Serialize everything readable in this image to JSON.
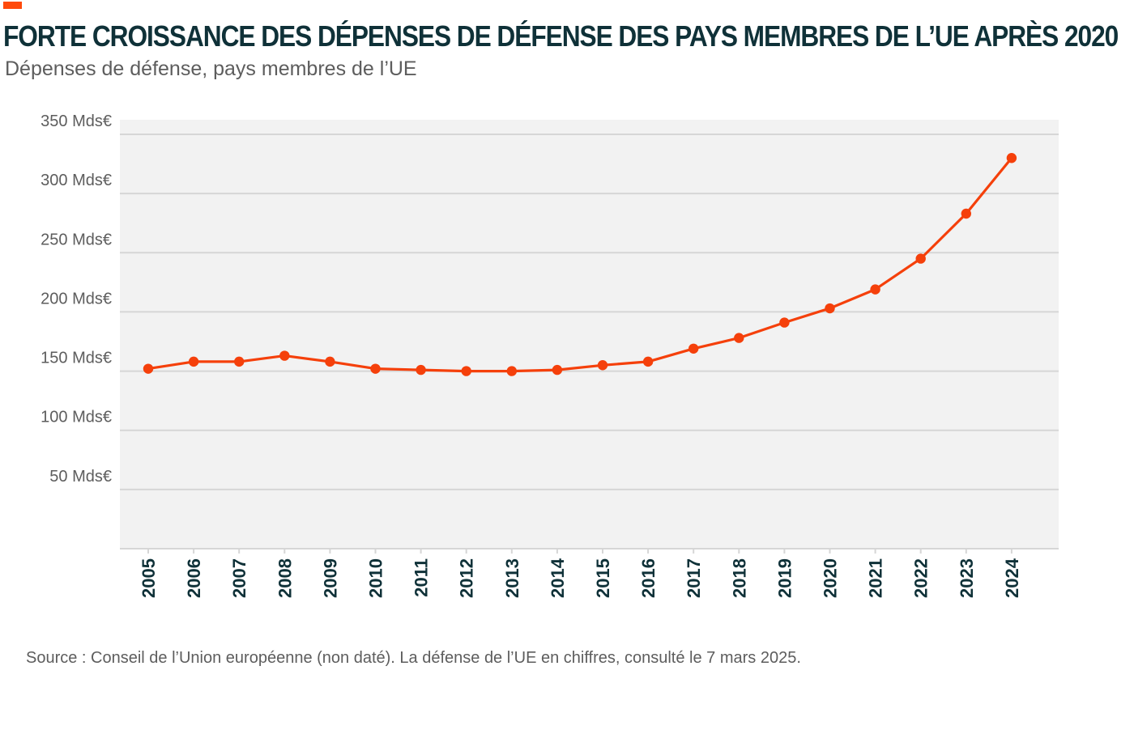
{
  "header": {
    "title": "FORTE CROISSANCE DES DÉPENSES DE DÉFENSE DES PAYS MEMBRES DE L’UE APRÈS 2020",
    "subtitle": "Dépenses de défense, pays membres de l’UE"
  },
  "footer": {
    "source": "Source : Conseil de l’Union européenne (non daté). La défense de l’UE en chiffres, consulté le 7 mars 2025."
  },
  "colors": {
    "accent": "#ff4a0b",
    "line": "#f5400b",
    "plot_background": "#f2f2f2",
    "grid": "#d6d6d6",
    "title": "#0f3138",
    "text": "#5d5d5d"
  },
  "chart_data": {
    "type": "line",
    "title": "FORTE CROISSANCE DES DÉPENSES DE DÉFENSE DES PAYS MEMBRES DE L’UE APRÈS 2020",
    "subtitle": "Dépenses de défense, pays membres de l’UE",
    "xlabel": "",
    "ylabel": "",
    "categories": [
      "2005",
      "2006",
      "2007",
      "2008",
      "2009",
      "2010",
      "2011",
      "2012",
      "2013",
      "2014",
      "2015",
      "2016",
      "2017",
      "2018",
      "2019",
      "2020",
      "2021",
      "2022",
      "2023",
      "2024"
    ],
    "values": [
      152,
      158,
      158,
      163,
      158,
      152,
      151,
      150,
      150,
      151,
      155,
      158,
      169,
      178,
      191,
      203,
      219,
      245,
      283,
      330
    ],
    "ylim": [
      0,
      350
    ],
    "yticks": [
      {
        "value": 50,
        "label": "50 Mds€"
      },
      {
        "value": 100,
        "label": "100 Mds€"
      },
      {
        "value": 150,
        "label": "150 Mds€"
      },
      {
        "value": 200,
        "label": "200 Mds€"
      },
      {
        "value": 250,
        "label": "250 Mds€"
      },
      {
        "value": 300,
        "label": "300 Mds€"
      },
      {
        "value": 350,
        "label": "350 Mds€"
      }
    ],
    "grid": true,
    "markers": true
  }
}
